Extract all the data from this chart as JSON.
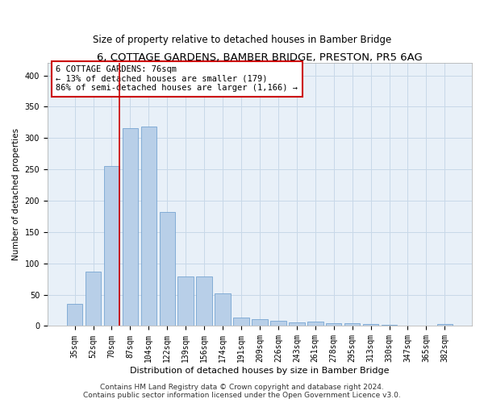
{
  "title": "6, COTTAGE GARDENS, BAMBER BRIDGE, PRESTON, PR5 6AG",
  "subtitle": "Size of property relative to detached houses in Bamber Bridge",
  "xlabel": "Distribution of detached houses by size in Bamber Bridge",
  "ylabel": "Number of detached properties",
  "categories": [
    "35sqm",
    "52sqm",
    "70sqm",
    "87sqm",
    "104sqm",
    "122sqm",
    "139sqm",
    "156sqm",
    "174sqm",
    "191sqm",
    "209sqm",
    "226sqm",
    "243sqm",
    "261sqm",
    "278sqm",
    "295sqm",
    "313sqm",
    "330sqm",
    "347sqm",
    "365sqm",
    "382sqm"
  ],
  "values": [
    35,
    87,
    255,
    316,
    318,
    182,
    79,
    79,
    52,
    14,
    11,
    8,
    6,
    7,
    5,
    4,
    3,
    2,
    1,
    1,
    3
  ],
  "bar_color": "#b8cfe8",
  "bar_edge_color": "#6699cc",
  "vline_x": 2.425,
  "vline_color": "#cc0000",
  "annotation_text": "6 COTTAGE GARDENS: 76sqm\n← 13% of detached houses are smaller (179)\n86% of semi-detached houses are larger (1,166) →",
  "annotation_box_color": "#ffffff",
  "annotation_box_edge": "#cc0000",
  "ylim": [
    0,
    420
  ],
  "yticks": [
    0,
    50,
    100,
    150,
    200,
    250,
    300,
    350,
    400
  ],
  "grid_color": "#c8d8e8",
  "background_color": "#e8f0f8",
  "footer": "Contains HM Land Registry data © Crown copyright and database right 2024.\nContains public sector information licensed under the Open Government Licence v3.0.",
  "title_fontsize": 9.5,
  "subtitle_fontsize": 8.5,
  "xlabel_fontsize": 8,
  "ylabel_fontsize": 7.5,
  "tick_fontsize": 7,
  "annotation_fontsize": 7.5,
  "footer_fontsize": 6.5
}
